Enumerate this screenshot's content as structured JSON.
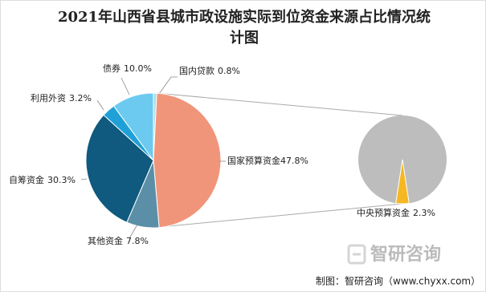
{
  "chart_data": [
    {
      "type": "pie",
      "title": "2021年山西省县城市政设施实际到位资金来源占比情况统计图",
      "categories": [
        "国内贷款",
        "国家预算资金",
        "其他资金",
        "自筹资金",
        "利用外资",
        "债券"
      ],
      "values": [
        0.8,
        47.8,
        7.8,
        30.3,
        3.2,
        10.0
      ],
      "value_labels": [
        "0.8%",
        "47.8%",
        "7.8%",
        "30.3%",
        "3.2%",
        "10.0%"
      ],
      "colors": [
        "#a9dcee",
        "#f0957a",
        "#5b8fa8",
        "#0f5a7e",
        "#1fa1d8",
        "#6ccaf0"
      ]
    },
    {
      "type": "pie-detail",
      "categories": [
        "中央预算资金"
      ],
      "values": [
        2.3
      ],
      "value_labels": [
        "2.3%"
      ],
      "colors": [
        "#f5b823"
      ],
      "rest_color": "#bdbdbd"
    }
  ],
  "source": "制图：智研咨询（www.chyxx.com）",
  "watermark": "智研咨询"
}
